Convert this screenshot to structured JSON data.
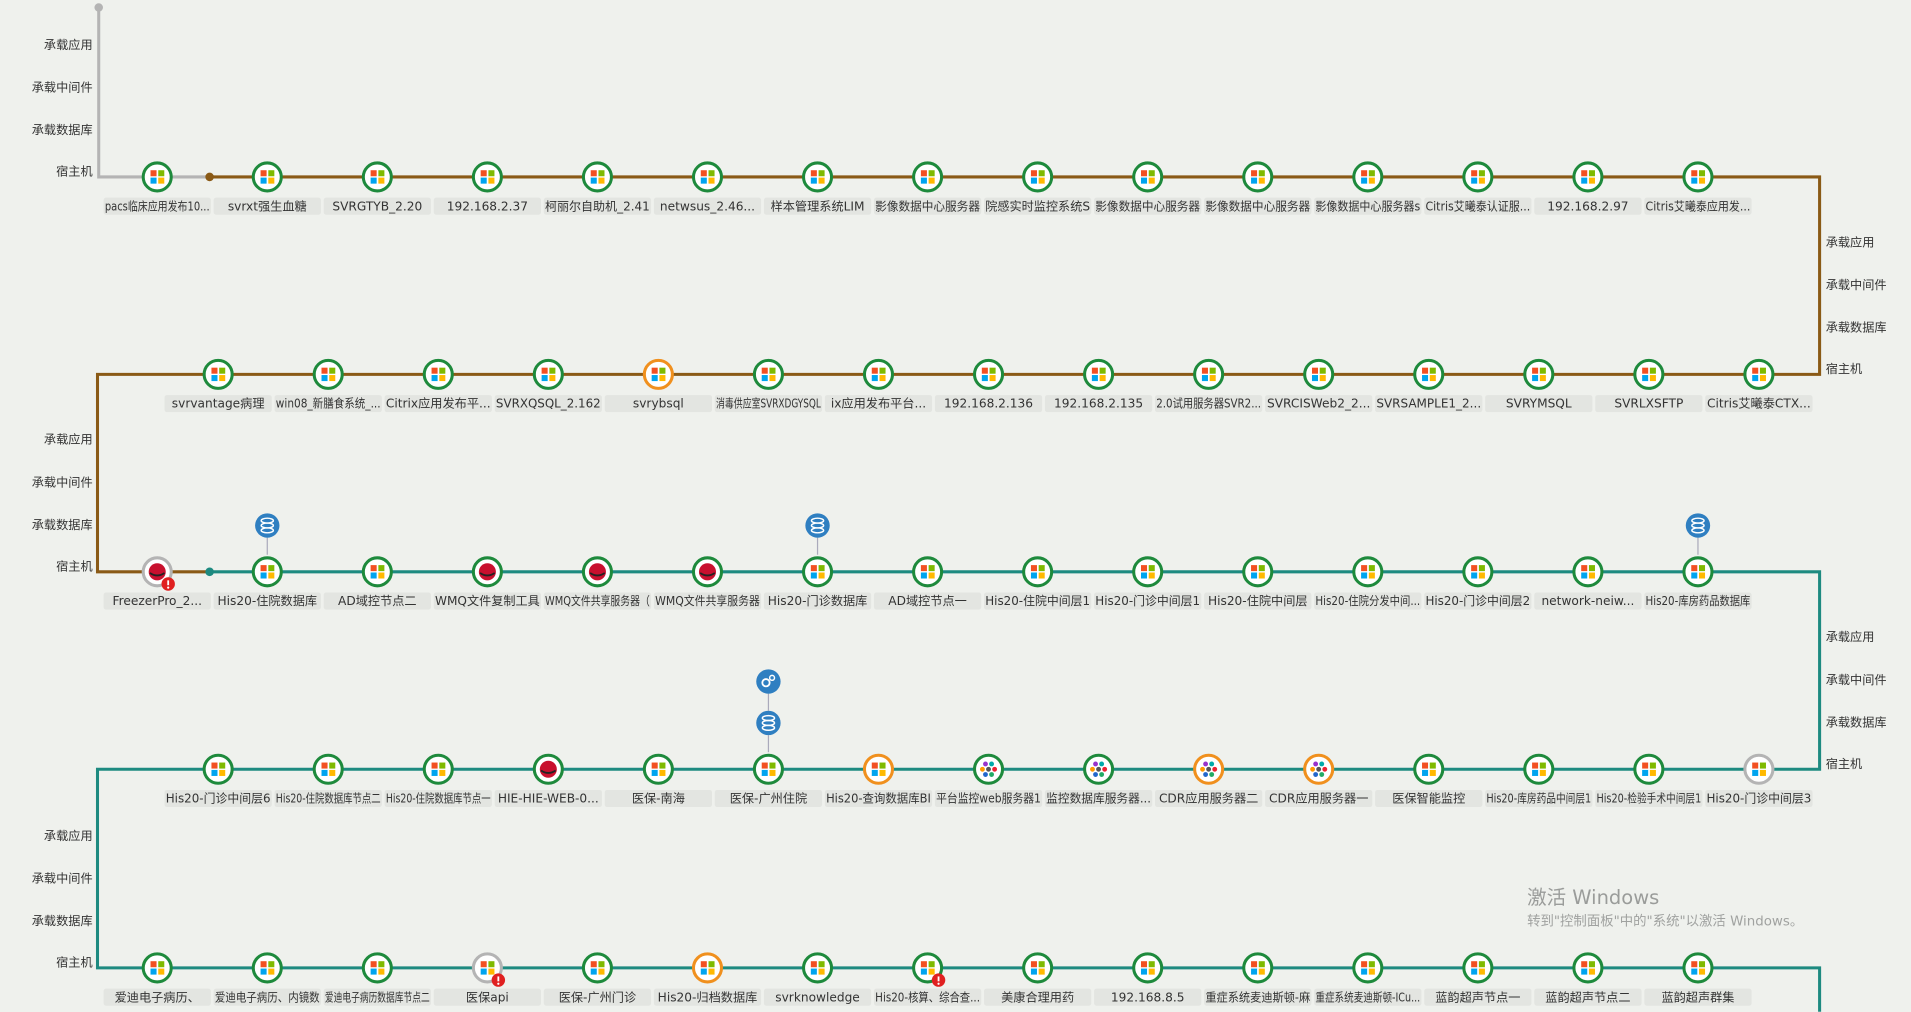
{
  "layer_labels": [
    "承载应用",
    "承载中间件",
    "承载数据库",
    "宿主机"
  ],
  "rows": [
    {
      "nodes": [
        {
          "label": "pacs临床应用发布10..."
        },
        {
          "label": "svrxt强生血糖"
        },
        {
          "label": "SVRGTYB_2.20"
        },
        {
          "label": "192.168.2.37"
        },
        {
          "label": "柯丽尔自助机_2.41"
        },
        {
          "label": "netwsus_2.46..."
        },
        {
          "label": "样本管理系统LIM"
        },
        {
          "label": "影像数据中心服务器"
        },
        {
          "label": "院感实时监控系统S"
        },
        {
          "label": "影像数据中心服务器"
        },
        {
          "label": "影像数据中心服务器"
        },
        {
          "label": "影像数据中心服务器s"
        },
        {
          "label": "Citris艾曦泰认证服..."
        },
        {
          "label": "192.168.2.97"
        },
        {
          "label": "Citris艾曦泰应用发..."
        }
      ]
    },
    {
      "nodes": [
        {
          "label": "svrvantage病理"
        },
        {
          "label": "win08_新膳食系统_..."
        },
        {
          "label": "Citrix应用发布平..."
        },
        {
          "label": "SVRXQSQL_2.162"
        },
        {
          "label": "svrybsql",
          "ring": "orange"
        },
        {
          "label": "消毒供应室SVRXDGYSQL"
        },
        {
          "label": "ix应用发布平台..."
        },
        {
          "label": "192.168.2.136"
        },
        {
          "label": "192.168.2.135"
        },
        {
          "label": "2.0试用服务器SVR2..."
        },
        {
          "label": "SVRCISWeb2_2..."
        },
        {
          "label": "SVRSAMPLE1_2..."
        },
        {
          "label": "SVRYMSQL"
        },
        {
          "label": "SVRLXSFTP"
        },
        {
          "label": "Citris艾曦泰CTX..."
        }
      ]
    },
    {
      "nodes": [
        {
          "label": "FreezerPro_2...",
          "ring": "gray",
          "icon": "redhat",
          "alert": true
        },
        {
          "label": "His20-住院数据库",
          "stack": [
            "db"
          ]
        },
        {
          "label": "AD域控节点二"
        },
        {
          "label": "WMQ文件复制工具",
          "icon": "redhat"
        },
        {
          "label": "WMQ文件共享服务器（",
          "icon": "redhat"
        },
        {
          "label": "WMQ文件共享服务器",
          "icon": "redhat"
        },
        {
          "label": "His20-门诊数据库",
          "stack": [
            "db"
          ]
        },
        {
          "label": "AD域控节点一"
        },
        {
          "label": "His20-住院中间层1"
        },
        {
          "label": "His20-门诊中间层1"
        },
        {
          "label": "His20-住院中间层"
        },
        {
          "label": "His20-住院分发中间..."
        },
        {
          "label": "His20-门诊中间层2"
        },
        {
          "label": "network-neiw..."
        },
        {
          "label": "His20-库房药品数据库",
          "stack": [
            "db"
          ]
        }
      ]
    },
    {
      "nodes": [
        {
          "label": "His20-门诊中间层6"
        },
        {
          "label": "His20-住院数据库节点二"
        },
        {
          "label": "His20-住院数据库节点一"
        },
        {
          "label": "HIE-HIE-WEB-0...",
          "icon": "redhat"
        },
        {
          "label": "医保-南海"
        },
        {
          "label": "医保-广州住院",
          "stack": [
            "db",
            "app"
          ]
        },
        {
          "label": "His20-查询数据库BI",
          "ring": "orange"
        },
        {
          "label": "平台监控web服务器1",
          "icon": "other"
        },
        {
          "label": "监控数据库服务器...",
          "icon": "other"
        },
        {
          "label": "CDR应用服务器二",
          "ring": "orange",
          "icon": "other"
        },
        {
          "label": "CDR应用服务器一",
          "ring": "orange",
          "icon": "other"
        },
        {
          "label": "医保智能监控"
        },
        {
          "label": "His20-库房药品中间层1"
        },
        {
          "label": "His20-检验手术中间层1"
        },
        {
          "label": "His20-门诊中间层3",
          "ring": "gray"
        }
      ]
    },
    {
      "nodes": [
        {
          "label": "爱迪电子病历、"
        },
        {
          "label": "爱迪电子病历、内镜数"
        },
        {
          "label": "爱迪电子病历数据库节点二"
        },
        {
          "label": "医保api",
          "ring": "gray",
          "alert": true
        },
        {
          "label": "医保-广州门诊"
        },
        {
          "label": "His20-归档数据库",
          "ring": "orange"
        },
        {
          "label": "svrknowledge"
        },
        {
          "label": "His20-核算、综合查...",
          "alert": true
        },
        {
          "label": "美康合理用药"
        },
        {
          "label": "192.168.8.5"
        },
        {
          "label": "重症系统麦迪斯顿-麻"
        },
        {
          "label": "重症系统麦迪斯顿-ICu..."
        },
        {
          "label": "蓝韵超声节点一"
        },
        {
          "label": "蓝韵超声节点二"
        },
        {
          "label": "蓝韵超声群集"
        }
      ]
    }
  ],
  "watermark": {
    "title": "激活 Windows",
    "subtitle": "转到\"控制面板\"中的\"系统\"以激活 Windows。"
  }
}
